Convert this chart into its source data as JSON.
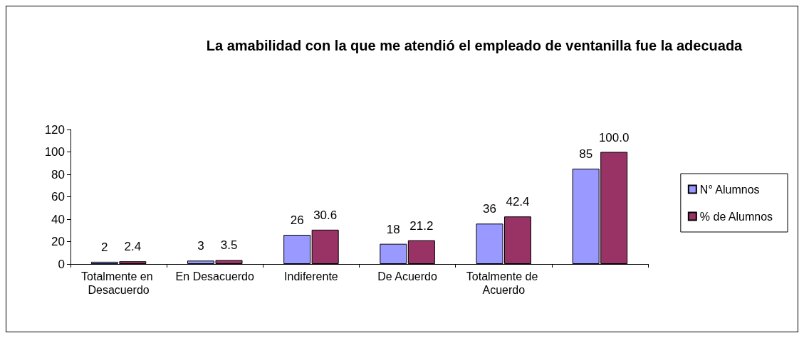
{
  "chart_data": {
    "type": "bar",
    "title": "La amabilidad con la que me atendió el empleado de ventanilla fue la adecuada",
    "categories": [
      "Totalmente en Desacuerdo",
      "En Desacuerdo",
      "Indiferente",
      "De Acuerdo",
      "Totalmente de Acuerdo",
      null
    ],
    "series": [
      {
        "name": "N° Alumnos",
        "color": "#9999ff",
        "values": [
          2,
          3,
          26,
          18,
          36,
          85
        ],
        "value_labels": [
          "2",
          "3",
          "26",
          "18",
          "36",
          "85"
        ]
      },
      {
        "name": "% de Alumnos",
        "color": "#993366",
        "values": [
          2.4,
          3.5,
          30.6,
          21.2,
          42.4,
          100.0
        ],
        "value_labels": [
          "2.4",
          "3.5",
          "30.6",
          "21.2",
          "42.4",
          "100.0"
        ]
      }
    ],
    "ylim": [
      0,
      120
    ],
    "yticks": [
      0,
      20,
      40,
      60,
      80,
      100,
      120
    ],
    "grid": false,
    "legend": "right"
  }
}
